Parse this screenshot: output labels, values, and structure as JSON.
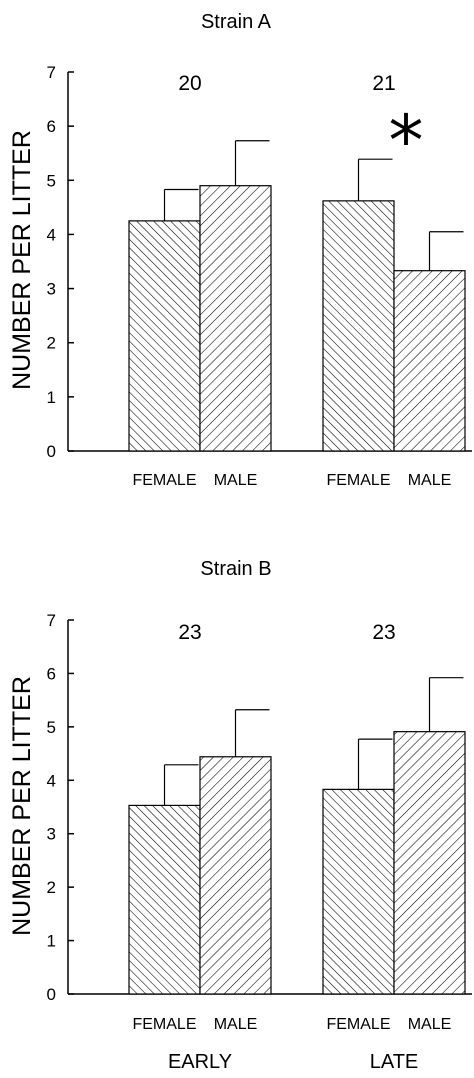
{
  "chart_data": [
    {
      "type": "bar",
      "title": "Strain A",
      "ylabel": "NUMBER PER LITTER",
      "ylim": [
        0,
        7
      ],
      "yticks": [
        0,
        1,
        2,
        3,
        4,
        5,
        6,
        7
      ],
      "groups": [
        {
          "n_label": "20",
          "significance": "",
          "bars": [
            {
              "category": "FEMALE",
              "value": 4.25,
              "error": 0.58,
              "pattern": "hatch-back"
            },
            {
              "category": "MALE",
              "value": 4.9,
              "error": 0.83,
              "pattern": "hatch-forward"
            }
          ]
        },
        {
          "n_label": "21",
          "significance": "*",
          "bars": [
            {
              "category": "FEMALE",
              "value": 4.62,
              "error": 0.77,
              "pattern": "hatch-back"
            },
            {
              "category": "MALE",
              "value": 3.33,
              "error": 0.72,
              "pattern": "hatch-forward"
            }
          ]
        }
      ],
      "group_labels": [
        "",
        ""
      ]
    },
    {
      "type": "bar",
      "title": "Strain B",
      "ylabel": "NUMBER PER LITTER",
      "ylim": [
        0,
        7
      ],
      "yticks": [
        0,
        1,
        2,
        3,
        4,
        5,
        6,
        7
      ],
      "groups": [
        {
          "n_label": "23",
          "significance": "",
          "bars": [
            {
              "category": "FEMALE",
              "value": 3.53,
              "error": 0.76,
              "pattern": "hatch-back"
            },
            {
              "category": "MALE",
              "value": 4.44,
              "error": 0.88,
              "pattern": "hatch-forward"
            }
          ]
        },
        {
          "n_label": "23",
          "significance": "",
          "bars": [
            {
              "category": "FEMALE",
              "value": 3.83,
              "error": 0.94,
              "pattern": "hatch-back"
            },
            {
              "category": "MALE",
              "value": 4.91,
              "error": 1.01,
              "pattern": "hatch-forward"
            }
          ]
        }
      ],
      "group_labels": [
        "EARLY",
        "LATE"
      ]
    }
  ]
}
